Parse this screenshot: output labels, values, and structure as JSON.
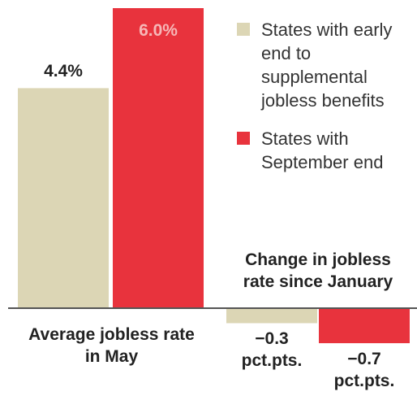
{
  "chart_data": {
    "type": "bar",
    "categories": [
      "Average jobless rate in May",
      "Change in jobless rate since January"
    ],
    "series": [
      {
        "name": "States with early end to supplemental jobless benefits",
        "color": "#dcd6b5",
        "values": [
          4.4,
          -0.3
        ],
        "value_labels": [
          "4.4%",
          "−0.3 pct.pts."
        ]
      },
      {
        "name": "States with September end",
        "color": "#e8333d",
        "values": [
          6.0,
          -0.7
        ],
        "value_labels": [
          "6.0%",
          "−0.7 pct.pts."
        ]
      }
    ]
  }
}
